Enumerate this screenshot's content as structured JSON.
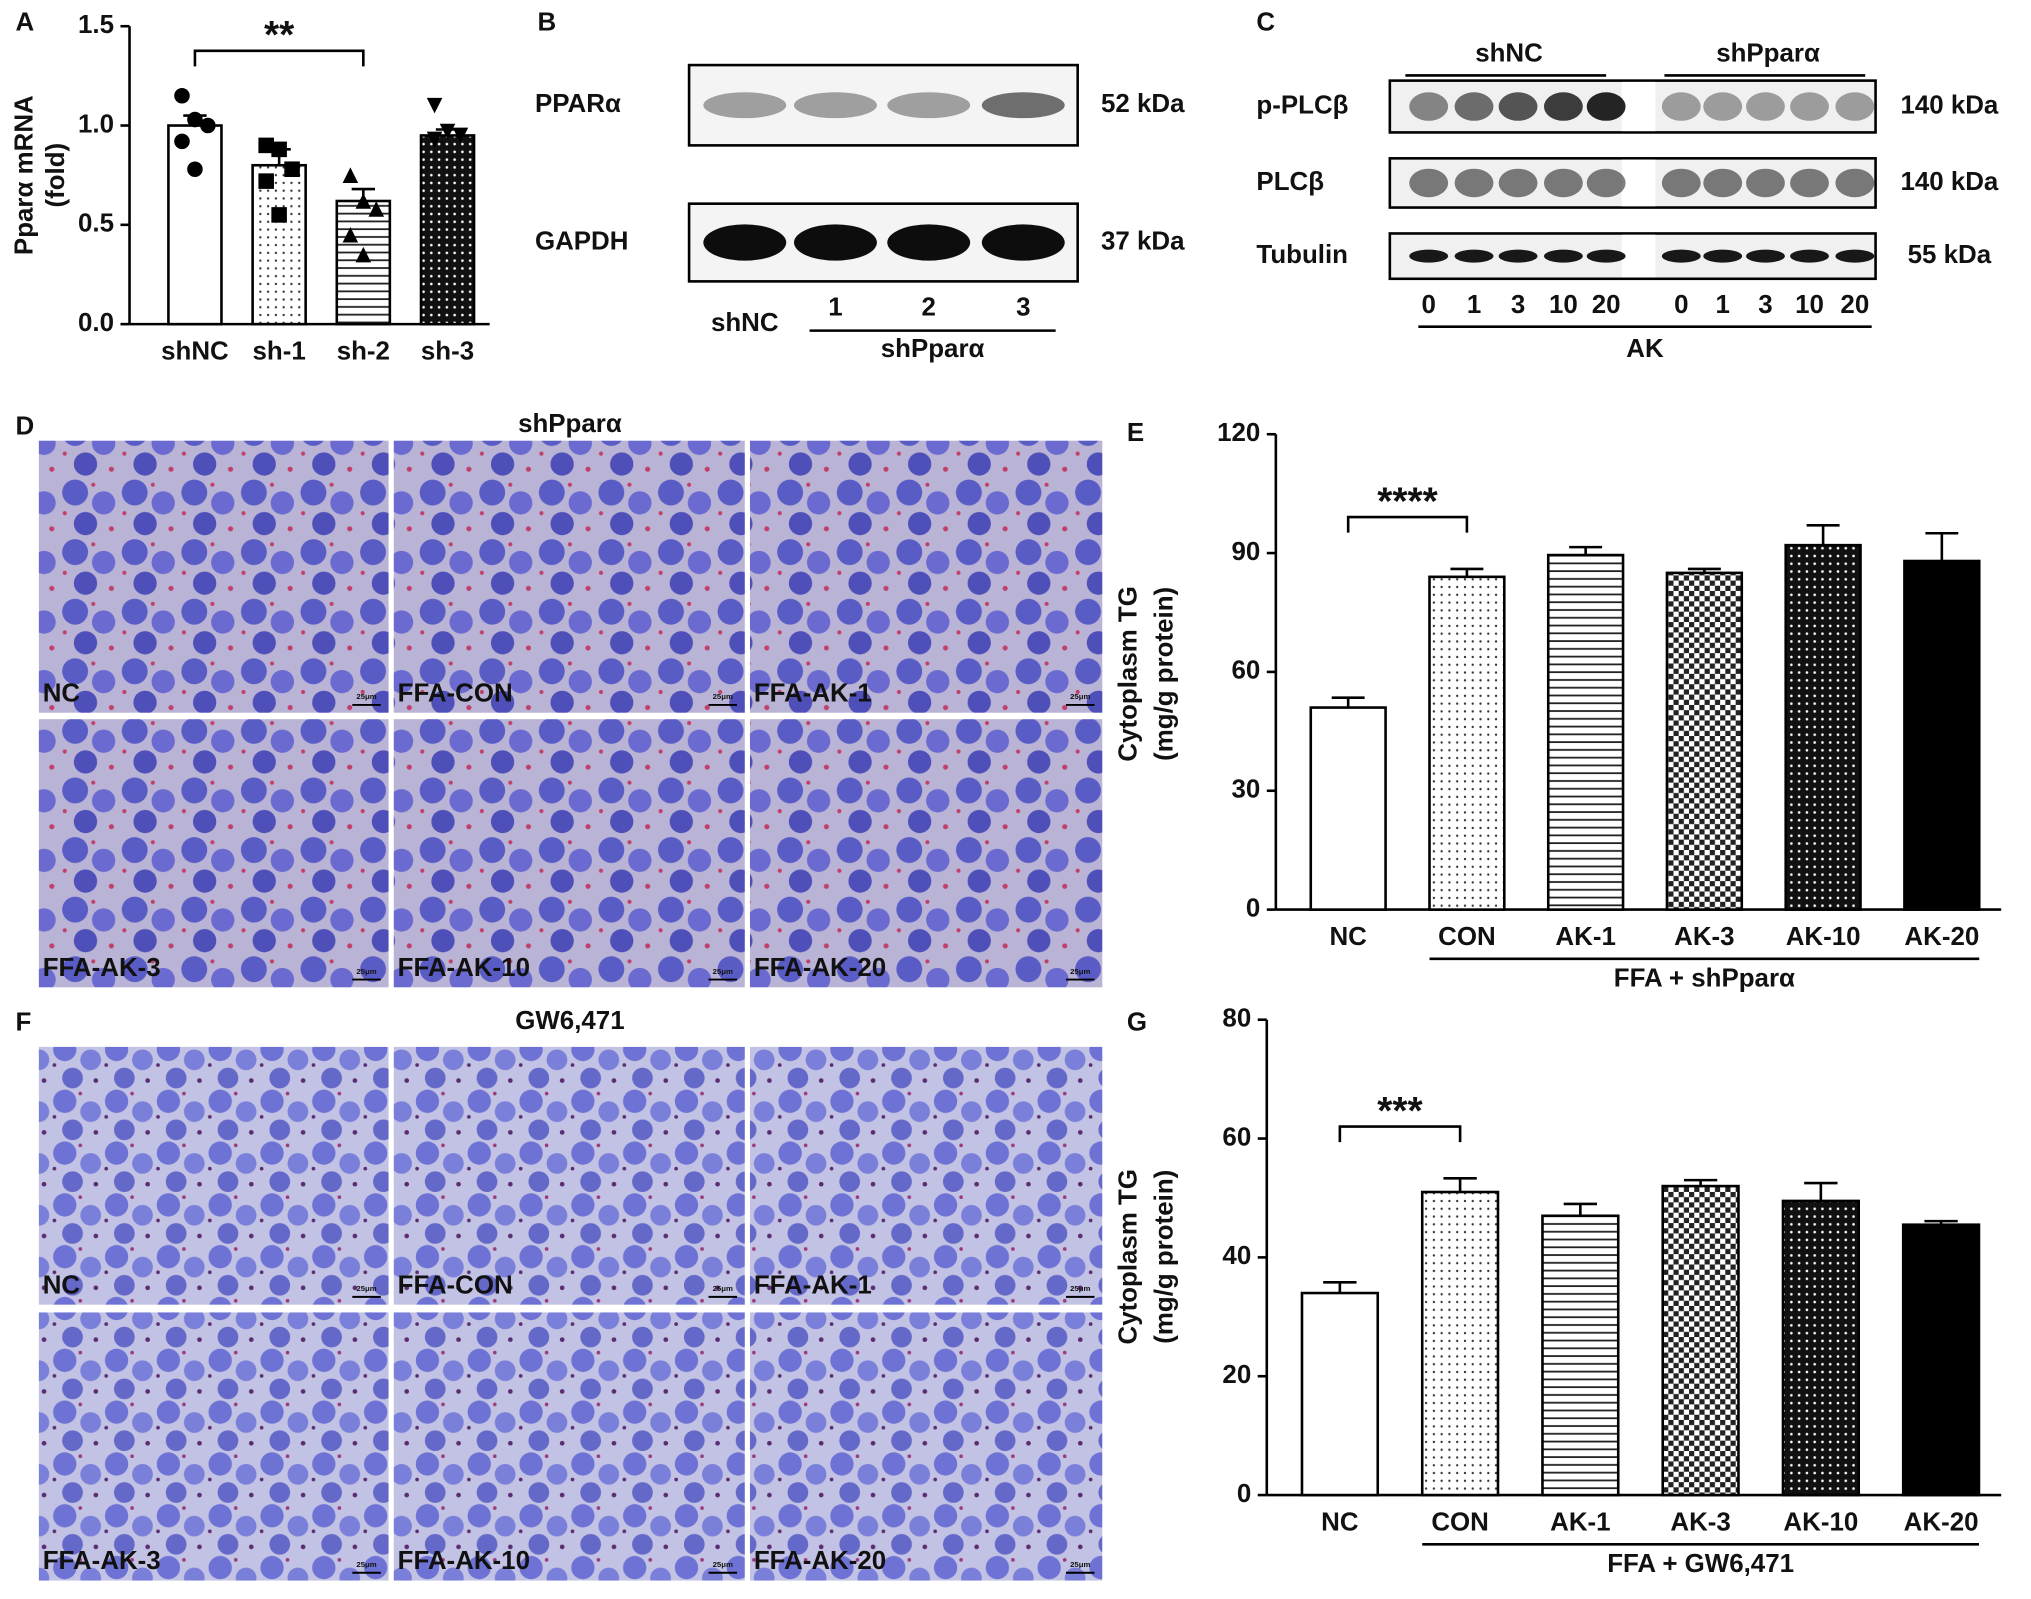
{
  "chart_data": [
    {
      "type": "bar",
      "panel": "A",
      "y_label": [
        "Pparα mRNA",
        "(fold)"
      ],
      "categories": [
        "shNC",
        "sh-1",
        "sh-2",
        "sh-3"
      ],
      "values": [
        1.0,
        0.8,
        0.62,
        0.95
      ],
      "errors": [
        0.05,
        0.08,
        0.06,
        0.03
      ],
      "points": [
        [
          1.15,
          1.03,
          1.0,
          0.92,
          0.78
        ],
        [
          0.9,
          0.88,
          0.78,
          0.72,
          0.55
        ],
        [
          0.75,
          0.62,
          0.58,
          0.45,
          0.35
        ],
        [
          1.1,
          0.97,
          0.95,
          0.93
        ]
      ],
      "markers": [
        "circle",
        "square",
        "triangle",
        "triangle-down"
      ],
      "patterns": [
        "none",
        "dots",
        "hlines",
        "darkdots"
      ],
      "ylim": [
        0,
        1.5
      ],
      "yticks": [
        {
          "value": 0,
          "label": "0.0"
        },
        0.5,
        {
          "value": 1,
          "label": "1.0"
        },
        1.5
      ],
      "significance": {
        "label": "**",
        "between": [
          "shNC",
          "sh-2"
        ]
      }
    },
    {
      "type": "bar",
      "panel": "E",
      "y_label": [
        "Cytoplasm TG",
        "(mg/g protein)"
      ],
      "categories": [
        "NC",
        "CON",
        "AK-1",
        "AK-3",
        "AK-10",
        "AK-20"
      ],
      "values": [
        51,
        84,
        89.5,
        85,
        92,
        88
      ],
      "errors": [
        2.5,
        2,
        2,
        1,
        5,
        7
      ],
      "patterns": [
        "none",
        "dots",
        "hlines",
        "checker",
        "darkdots",
        "solid"
      ],
      "ylim": [
        0,
        120
      ],
      "yticks": [
        0,
        30,
        60,
        90,
        120
      ],
      "significance": {
        "label": "****",
        "between": [
          "NC",
          "CON"
        ]
      },
      "group": {
        "label": "FFA + shPparα",
        "span": [
          "CON",
          "AK-20"
        ]
      }
    },
    {
      "type": "bar",
      "panel": "G",
      "y_label": [
        "Cytoplasm TG",
        "(mg/g protein)"
      ],
      "categories": [
        "NC",
        "CON",
        "AK-1",
        "AK-3",
        "AK-10",
        "AK-20"
      ],
      "values": [
        34,
        51,
        47,
        52,
        49.5,
        45.5
      ],
      "errors": [
        1.8,
        2.3,
        2,
        1,
        3,
        0.6
      ],
      "patterns": [
        "none",
        "dots",
        "hlines",
        "checker",
        "darkdots",
        "solid"
      ],
      "ylim": [
        0,
        80
      ],
      "yticks": [
        0,
        20,
        40,
        60,
        80
      ],
      "significance": {
        "label": "***",
        "between": [
          "NC",
          "CON"
        ]
      },
      "group": {
        "label": "FFA + GW6,471",
        "span": [
          "CON",
          "AK-20"
        ]
      }
    }
  ],
  "panels": {
    "B": {
      "letter": "B",
      "rows": [
        "PPARα",
        "GAPDH"
      ],
      "sizes": [
        "52 kDa",
        "37 kDa"
      ],
      "lanes": [
        "shNC",
        "1",
        "2",
        "3"
      ],
      "group": "shPparα"
    },
    "C": {
      "letter": "C",
      "rows": [
        "p-PLCβ",
        "PLCβ",
        "Tubulin"
      ],
      "sizes": [
        "140 kDa",
        "140 kDa",
        "55 kDa"
      ],
      "groups": [
        "shNC",
        "shPparα"
      ],
      "lanes": [
        "0",
        "1",
        "3",
        "10",
        "20"
      ],
      "treatment": "AK"
    },
    "D": {
      "letter": "D",
      "title": "shPparα",
      "labels": [
        "NC",
        "FFA-CON",
        "FFA-AK-1",
        "FFA-AK-3",
        "FFA-AK-10",
        "FFA-AK-20"
      ],
      "scale": "25μm"
    },
    "F": {
      "letter": "F",
      "title": "GW6,471",
      "labels": [
        "NC",
        "FFA-CON",
        "FFA-AK-1",
        "FFA-AK-3",
        "FFA-AK-10",
        "FFA-AK-20"
      ],
      "scale": "25μm"
    }
  }
}
